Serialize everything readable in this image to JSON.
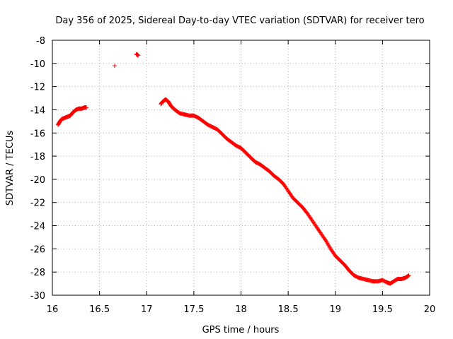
{
  "chart_data": {
    "type": "scatter",
    "title": "Day 356 of 2025, Sidereal Day-to-day VTEC variation (SDTVAR) for receiver tero",
    "xlabel": "GPS time / hours",
    "ylabel": "SDTVAR / TECUs",
    "xlim": [
      16,
      20
    ],
    "ylim": [
      -30,
      -8
    ],
    "xticks": [
      16,
      16.5,
      17,
      17.5,
      18,
      18.5,
      19,
      19.5,
      20
    ],
    "xtick_labels": [
      "16",
      "16.5",
      "17",
      "17.5",
      "18",
      "18.5",
      "19",
      "19.5",
      "20"
    ],
    "yticks": [
      -30,
      -28,
      -26,
      -24,
      -22,
      -20,
      -18,
      -16,
      -14,
      -12,
      -10,
      -8
    ],
    "ytick_labels": [
      "-30",
      "-28",
      "-26",
      "-24",
      "-22",
      "-20",
      "-18",
      "-16",
      "-14",
      "-12",
      "-10",
      "-8"
    ],
    "grid": true,
    "marker": "+",
    "color": "#ff0000",
    "series": [
      {
        "name": "SDTVAR",
        "x": [
          16.06,
          16.08,
          16.1,
          16.13,
          16.16,
          16.19,
          16.22,
          16.25,
          16.28,
          16.31,
          16.34,
          16.36,
          16.66,
          16.89,
          16.91,
          17.15,
          17.17,
          17.2,
          17.23,
          17.26,
          17.3,
          17.35,
          17.4,
          17.45,
          17.5,
          17.55,
          17.6,
          17.65,
          17.7,
          17.75,
          17.8,
          17.85,
          17.9,
          17.95,
          18.0,
          18.05,
          18.1,
          18.15,
          18.2,
          18.25,
          18.3,
          18.35,
          18.4,
          18.45,
          18.5,
          18.55,
          18.6,
          18.65,
          18.7,
          18.75,
          18.8,
          18.85,
          18.9,
          18.95,
          19.0,
          19.05,
          19.1,
          19.15,
          19.2,
          19.25,
          19.3,
          19.35,
          19.4,
          19.45,
          19.5,
          19.55,
          19.58,
          19.62,
          19.66,
          19.7,
          19.74,
          19.78
        ],
        "y": [
          -15.3,
          -15.0,
          -14.8,
          -14.7,
          -14.6,
          -14.5,
          -14.2,
          -14.0,
          -13.9,
          -13.9,
          -13.8,
          -13.8,
          -10.2,
          -9.2,
          -9.3,
          -13.5,
          -13.3,
          -13.1,
          -13.3,
          -13.7,
          -14.0,
          -14.3,
          -14.4,
          -14.5,
          -14.5,
          -14.7,
          -15.0,
          -15.3,
          -15.5,
          -15.7,
          -16.1,
          -16.5,
          -16.8,
          -17.1,
          -17.3,
          -17.7,
          -18.1,
          -18.5,
          -18.7,
          -19.0,
          -19.3,
          -19.7,
          -20.0,
          -20.4,
          -21.0,
          -21.6,
          -22.0,
          -22.4,
          -22.9,
          -23.5,
          -24.1,
          -24.7,
          -25.3,
          -26.0,
          -26.6,
          -27.0,
          -27.4,
          -27.9,
          -28.3,
          -28.5,
          -28.6,
          -28.7,
          -28.8,
          -28.8,
          -28.7,
          -28.9,
          -29.0,
          -28.8,
          -28.6,
          -28.6,
          -28.5,
          -28.3
        ]
      }
    ]
  }
}
